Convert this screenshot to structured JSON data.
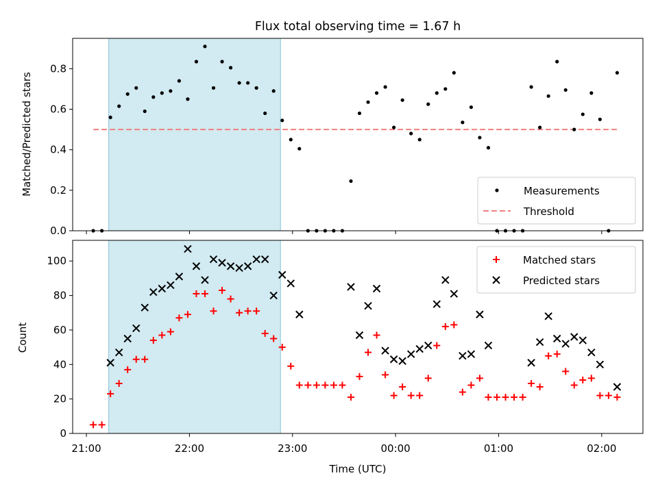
{
  "title": "Flux total observing time = 1.67 h",
  "colors": {
    "measurement": "#000000",
    "threshold": "#f08080",
    "matched": "#ff0000",
    "predicted": "#000000",
    "highlight_fill": "#add8e6",
    "highlight_edge": "#87c3d6"
  },
  "chart_data": [
    {
      "type": "scatter",
      "panel": "top",
      "ylabel": "Matched/Predicted stars",
      "ylim": [
        0,
        0.95
      ],
      "yticks": [
        0.0,
        0.2,
        0.4,
        0.6,
        0.8
      ],
      "ytick_labels": [
        "0.0",
        "0.2",
        "0.4",
        "0.6",
        "0.8"
      ],
      "xlim": [
        "20:52",
        "02:24"
      ],
      "grid": false,
      "legend": {
        "placement": "lower-right",
        "entries": [
          {
            "label": "Measurements",
            "marker": "dot",
            "color": "#000000"
          },
          {
            "label": "Threshold",
            "marker": "dashed-line",
            "color": "#f08080"
          }
        ]
      },
      "highlight_span": [
        "21:13",
        "22:53"
      ],
      "threshold": {
        "value": 0.5,
        "x_range": [
          "21:04",
          "02:09"
        ]
      },
      "series": [
        {
          "name": "Measurements",
          "x": [
            "21:04",
            "21:09",
            "21:14",
            "21:19",
            "21:24",
            "21:29",
            "21:34",
            "21:39",
            "21:44",
            "21:49",
            "21:54",
            "21:59",
            "22:04",
            "22:09",
            "22:14",
            "22:19",
            "22:24",
            "22:29",
            "22:34",
            "22:39",
            "22:44",
            "22:49",
            "22:54",
            "22:59",
            "23:04",
            "23:09",
            "23:14",
            "23:19",
            "23:24",
            "23:29",
            "23:34",
            "23:39",
            "23:44",
            "23:49",
            "23:54",
            "23:59",
            "00:04",
            "00:09",
            "00:14",
            "00:19",
            "00:24",
            "00:29",
            "00:34",
            "00:39",
            "00:44",
            "00:49",
            "00:54",
            "00:59",
            "01:04",
            "01:09",
            "01:14",
            "01:19",
            "01:24",
            "01:29",
            "01:34",
            "01:39",
            "01:44",
            "01:49",
            "01:54",
            "01:59",
            "02:04",
            "02:09"
          ],
          "y": [
            0,
            0,
            0.56,
            0.615,
            0.675,
            0.705,
            0.59,
            0.66,
            0.68,
            0.69,
            0.74,
            0.65,
            0.835,
            0.91,
            0.705,
            0.835,
            0.805,
            0.73,
            0.73,
            0.705,
            0.58,
            0.69,
            0.545,
            0.45,
            0.405,
            0,
            0,
            0,
            0,
            0,
            0.245,
            0.58,
            0.635,
            0.68,
            0.71,
            0.51,
            0.645,
            0.48,
            0.45,
            0.625,
            0.68,
            0.7,
            0.78,
            0.535,
            0.61,
            0.46,
            0.41,
            0,
            0,
            0,
            0,
            0.71,
            0.51,
            0.665,
            0.835,
            0.695,
            0.5,
            0.575,
            0.68,
            0.55,
            0,
            0.78
          ]
        }
      ]
    },
    {
      "type": "scatter",
      "panel": "bottom",
      "xlabel": "Time (UTC)",
      "ylabel": "Count",
      "ylim": [
        0,
        112
      ],
      "yticks": [
        0,
        20,
        40,
        60,
        80,
        100
      ],
      "ytick_labels": [
        "0",
        "20",
        "40",
        "60",
        "80",
        "100"
      ],
      "xlim": [
        "20:52",
        "02:24"
      ],
      "xticks": [
        "21:00",
        "22:00",
        "23:00",
        "00:00",
        "01:00",
        "02:00"
      ],
      "xtick_labels": [
        "21:00",
        "22:00",
        "23:00",
        "00:00",
        "01:00",
        "02:00"
      ],
      "grid": false,
      "legend": {
        "placement": "upper-right",
        "entries": [
          {
            "label": "Matched stars",
            "marker": "plus",
            "color": "#ff0000"
          },
          {
            "label": "Predicted stars",
            "marker": "x",
            "color": "#000000"
          }
        ]
      },
      "highlight_span": [
        "21:13",
        "22:53"
      ],
      "series": [
        {
          "name": "Matched stars",
          "x": [
            "21:04",
            "21:09",
            "21:14",
            "21:19",
            "21:24",
            "21:29",
            "21:34",
            "21:39",
            "21:44",
            "21:49",
            "21:54",
            "21:59",
            "22:04",
            "22:09",
            "22:14",
            "22:19",
            "22:24",
            "22:29",
            "22:34",
            "22:39",
            "22:44",
            "22:49",
            "22:54",
            "22:59",
            "23:04",
            "23:09",
            "23:14",
            "23:19",
            "23:24",
            "23:29",
            "23:34",
            "23:39",
            "23:44",
            "23:49",
            "23:54",
            "23:59",
            "00:04",
            "00:09",
            "00:14",
            "00:19",
            "00:24",
            "00:29",
            "00:34",
            "00:39",
            "00:44",
            "00:49",
            "00:54",
            "00:59",
            "01:04",
            "01:09",
            "01:14",
            "01:19",
            "01:24",
            "01:29",
            "01:34",
            "01:39",
            "01:44",
            "01:49",
            "01:54",
            "01:59",
            "02:04",
            "02:09"
          ],
          "y": [
            5,
            5,
            23,
            29,
            37,
            43,
            43,
            54,
            57,
            59,
            67,
            69,
            81,
            81,
            71,
            83,
            78,
            70,
            71,
            71,
            58,
            55,
            50,
            39,
            28,
            28,
            28,
            28,
            28,
            28,
            21,
            33,
            47,
            57,
            34,
            22,
            27,
            22,
            22,
            32,
            51,
            62,
            63,
            24,
            28,
            32,
            21,
            21,
            21,
            21,
            21,
            29,
            27,
            45,
            46,
            36,
            28,
            31,
            32,
            22,
            22,
            21
          ]
        },
        {
          "name": "Predicted stars",
          "x": [
            "21:14",
            "21:19",
            "21:24",
            "21:29",
            "21:34",
            "21:39",
            "21:44",
            "21:49",
            "21:54",
            "21:59",
            "22:04",
            "22:09",
            "22:14",
            "22:19",
            "22:24",
            "22:29",
            "22:34",
            "22:39",
            "22:44",
            "22:49",
            "22:54",
            "22:59",
            "23:04",
            "23:34",
            "23:39",
            "23:44",
            "23:49",
            "23:54",
            "23:59",
            "00:04",
            "00:09",
            "00:14",
            "00:19",
            "00:24",
            "00:29",
            "00:34",
            "00:39",
            "00:44",
            "00:49",
            "00:54",
            "01:19",
            "01:24",
            "01:29",
            "01:34",
            "01:39",
            "01:44",
            "01:49",
            "01:54",
            "01:59",
            "02:09"
          ],
          "y": [
            41,
            47,
            55,
            61,
            73,
            82,
            84,
            86,
            91,
            107,
            97,
            89,
            101,
            99,
            97,
            96,
            97,
            101,
            101,
            80,
            92,
            87,
            69,
            85,
            57,
            74,
            84,
            48,
            43,
            42,
            46,
            49,
            51,
            75,
            89,
            81,
            45,
            46,
            69,
            51,
            41,
            53,
            68,
            55,
            52,
            56,
            54,
            47,
            40,
            27
          ]
        }
      ]
    }
  ]
}
